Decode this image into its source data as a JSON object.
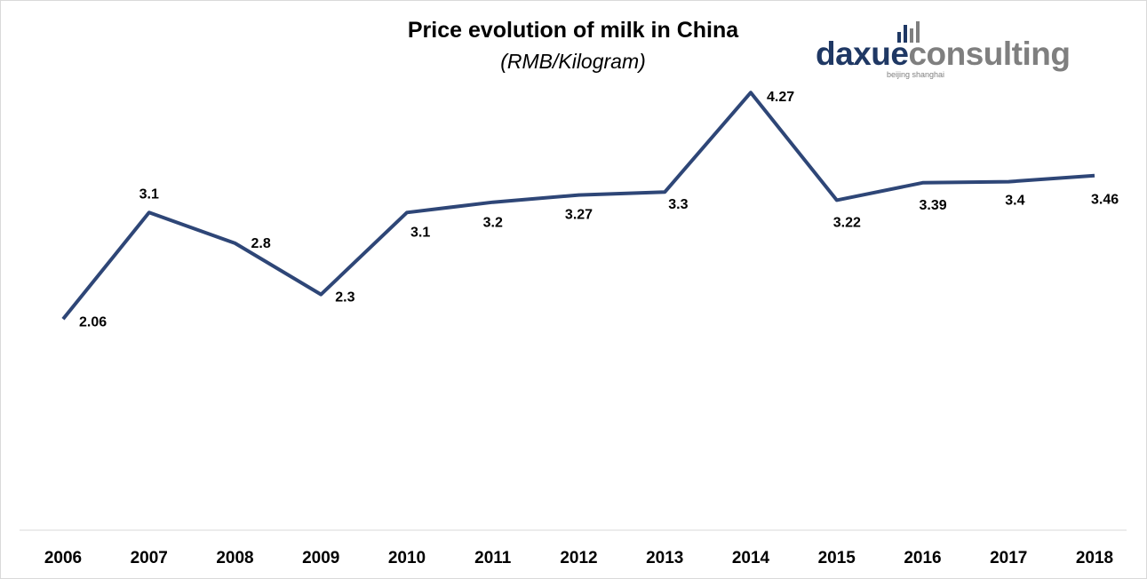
{
  "chart_data": {
    "type": "line",
    "title": "Price evolution of milk in China",
    "subtitle": "(RMB/Kilogram)",
    "categories": [
      "2006",
      "2007",
      "2008",
      "2009",
      "2010",
      "2011",
      "2012",
      "2013",
      "2014",
      "2015",
      "2016",
      "2017",
      "2018"
    ],
    "series": [
      {
        "values": [
          2.06,
          3.1,
          2.8,
          2.3,
          3.1,
          3.2,
          3.27,
          3.3,
          4.27,
          3.22,
          3.39,
          3.4,
          3.46
        ]
      }
    ],
    "data_labels": [
      "2.06",
      "3.1",
      "2.8",
      "2.3",
      "3.1",
      "3.2",
      "3.27",
      "3.3",
      "4.27",
      "3.22",
      "3.39",
      "3.4",
      "3.46"
    ],
    "ylim": [
      0,
      5
    ],
    "grid": false,
    "line_color": "#2e4677"
  },
  "logo": {
    "part1": "daxue",
    "part2": "consulting",
    "tagline": "beijing shanghai",
    "color_primary": "#1f3864",
    "color_secondary": "#7f7f7f"
  }
}
